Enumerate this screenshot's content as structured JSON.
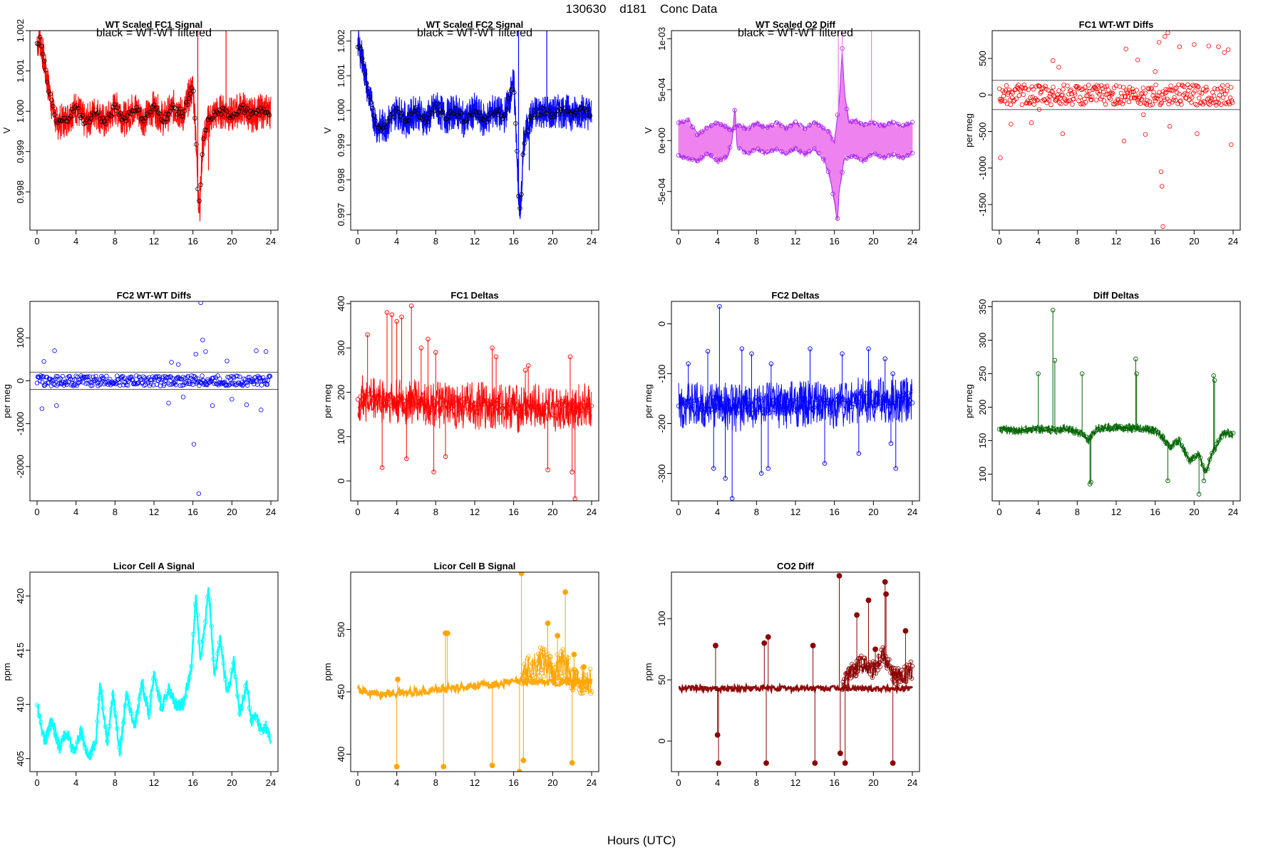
{
  "page": {
    "title": "130630    d181    Conc Data",
    "xlabel": "Hours (UTC)"
  },
  "chart_data": [
    {
      "id": "p1",
      "type": "line",
      "title": "WT Scaled FC1 Signal",
      "ylabel": "V",
      "note": "black = WT-WT filtered",
      "xlim": [
        0,
        24
      ],
      "ylim": [
        0.99705,
        1.002
      ],
      "yticks": [
        0.998,
        0.999,
        1.0,
        1.001,
        1.002
      ],
      "ytick_labels": [
        "0.998",
        "0.999",
        "1.000",
        "1.001",
        "1.002"
      ],
      "color": "#ff0000",
      "marker_color": "#000000",
      "series": [
        {
          "name": "signal",
          "x": [
            0,
            0.3,
            0.6,
            1,
            1.5,
            2,
            3,
            4,
            5,
            6,
            7,
            8,
            9,
            10,
            11,
            12,
            13,
            14,
            15,
            15.5,
            16,
            16.3,
            16.5,
            16.7,
            17,
            17.5,
            18,
            19,
            20,
            21,
            22,
            23,
            24
          ],
          "y": [
            1.0017,
            1.0018,
            1.0014,
            1.0008,
            1.0002,
            0.9997,
            0.9998,
            1.0001,
            0.9997,
            1.0,
            0.9997,
            1.0001,
            0.9998,
            1.0001,
            0.9998,
            1.0001,
            0.9998,
            1.0001,
            0.9999,
            1.0003,
            1.0006,
            0.9995,
            0.998,
            0.9976,
            0.9992,
            0.9997,
            0.9999,
            1.0,
            0.9999,
            1.0001,
            0.9999,
            1.0,
            1.0
          ]
        }
      ]
    },
    {
      "id": "p2",
      "type": "line",
      "title": "WT Scaled FC2 Signal",
      "ylabel": "V",
      "note": "black = WT-WT filtered",
      "xlim": [
        0,
        24
      ],
      "ylim": [
        0.99655,
        1.0023
      ],
      "yticks": [
        0.997,
        0.998,
        0.999,
        1.0,
        1.001,
        1.002
      ],
      "ytick_labels": [
        "0.997",
        "0.998",
        "0.999",
        "1.000",
        "1.001",
        "1.002"
      ],
      "color": "#0000ff",
      "marker_color": "#000000",
      "series": [
        {
          "name": "signal",
          "x": [
            0,
            0.3,
            0.6,
            1,
            1.5,
            2,
            3,
            4,
            5,
            6,
            7,
            8,
            9,
            10,
            11,
            12,
            13,
            14,
            15,
            15.5,
            16,
            16.3,
            16.5,
            16.7,
            17,
            17.5,
            18,
            19,
            20,
            21,
            22,
            23,
            24
          ],
          "y": [
            1.0019,
            1.0017,
            1.0013,
            1.0006,
            1.0,
            0.9995,
            0.9996,
            1.0,
            0.9997,
            1.0,
            0.9997,
            1.0001,
            0.9998,
            1.0,
            0.9997,
            1.0,
            0.9997,
            1.0,
            0.9998,
            1.0003,
            1.0008,
            0.9992,
            0.9975,
            0.997,
            0.999,
            0.9996,
            0.9999,
            1.0,
            0.9999,
            1.0,
            0.9999,
            1.0,
            0.9999
          ]
        }
      ]
    },
    {
      "id": "p3",
      "type": "line",
      "title": "WT Scaled O2 Diff",
      "ylabel": "V",
      "note": "black = WT-WT filtered",
      "xlim": [
        0,
        24
      ],
      "ylim": [
        -0.00088,
        0.00108
      ],
      "yticks": [
        -0.0005,
        0,
        0.0005,
        0.001
      ],
      "ytick_labels": [
        "-5e-04",
        "0e+00",
        "5e-04",
        "1e-03"
      ],
      "color": "#ee82ee",
      "marker_color": "#a020f0",
      "series": [
        {
          "name": "upper",
          "x": [
            0,
            1,
            2,
            3,
            4,
            5,
            5.5,
            6,
            7,
            8,
            9,
            10,
            11,
            12,
            13,
            14,
            15,
            15.5,
            16,
            16.5,
            16.8,
            17,
            17.5,
            18,
            19,
            20,
            21,
            22,
            23,
            24
          ],
          "y": [
            0.00017,
            0.0002,
            5e-05,
            0.00013,
            0.00018,
            0.00012,
            0.0001,
            0.00016,
            0.00011,
            0.00017,
            0.00012,
            0.00018,
            0.00012,
            0.00018,
            0.00012,
            0.00018,
            0.00012,
            8e-05,
            -2e-05,
            0.0004,
            0.0009,
            0.0005,
            0.00017,
            0.0002,
            0.00015,
            0.00018,
            0.00014,
            0.00018,
            0.00014,
            0.00018
          ]
        },
        {
          "name": "lower",
          "x": [
            0,
            1,
            2,
            3,
            4,
            5,
            5.5,
            5.8,
            6,
            7,
            8,
            9,
            10,
            11,
            12,
            13,
            14,
            15,
            15.5,
            16,
            16.3,
            16.5,
            17,
            18,
            19,
            20,
            21,
            22,
            23,
            24
          ],
          "y": [
            -0.00015,
            -0.00017,
            -0.0002,
            -0.00012,
            -0.0002,
            -0.00015,
            0.0,
            0.00035,
            -5e-05,
            -0.00013,
            -8e-05,
            -0.00012,
            -8e-05,
            -0.00013,
            -8e-05,
            -0.00013,
            -8e-05,
            -0.0002,
            -0.00035,
            -0.0006,
            -0.0008,
            -0.0005,
            -0.00018,
            -0.00015,
            -0.0002,
            -0.00012,
            -0.00017,
            -0.00013,
            -0.00017,
            -0.00012
          ]
        }
      ]
    },
    {
      "id": "p4",
      "type": "scatter",
      "title": "FC1 WT-WT Diffs",
      "ylabel": "per meg",
      "xlim": [
        0,
        24
      ],
      "ylim": [
        -1850,
        880
      ],
      "yticks": [
        -1500,
        -1000,
        -500,
        0,
        500
      ],
      "ytick_labels": [
        "-1500",
        "-1000",
        "-500",
        "0",
        "500"
      ],
      "hlines": [
        200,
        -200
      ],
      "color": "#ff0000",
      "outliers": {
        "x": [
          0.1,
          1.2,
          3.3,
          4.1,
          5.5,
          6.1,
          6.5,
          13.0,
          14.2,
          15.0,
          16.0,
          16.4,
          16.6,
          16.7,
          16.8,
          17.0,
          17.3,
          17.5,
          18.5,
          20.0,
          21.5,
          22.5,
          23.1,
          23.8,
          20.3,
          23.5,
          12.8,
          14.8
        ],
        "y": [
          -860,
          -400,
          -380,
          -200,
          470,
          380,
          -530,
          630,
          480,
          -540,
          320,
          720,
          -1050,
          -1250,
          -1800,
          800,
          850,
          -430,
          660,
          690,
          670,
          660,
          580,
          -680,
          -530,
          620,
          -630,
          -270
        ]
      }
    },
    {
      "id": "p5",
      "type": "scatter",
      "title": "FC2 WT-WT Diffs",
      "ylabel": "per meg",
      "xlim": [
        0,
        24
      ],
      "ylim": [
        -2800,
        1850
      ],
      "yticks": [
        -2000,
        -1000,
        0,
        1000
      ],
      "ytick_labels": [
        "-2000",
        "-1000",
        "0",
        "1000"
      ],
      "hlines": [
        200,
        -200
      ],
      "color": "#0000ff",
      "outliers": {
        "x": [
          0.5,
          0.7,
          1.8,
          2.0,
          13.5,
          13.8,
          15.0,
          16.1,
          16.3,
          16.6,
          16.8,
          17.0,
          17.3,
          18.0,
          19.5,
          20.0,
          22.5,
          23.0,
          23.5,
          21.5,
          14.5
        ],
        "y": [
          -650,
          450,
          700,
          -580,
          -520,
          430,
          -380,
          -1480,
          620,
          -2630,
          1820,
          950,
          680,
          -580,
          460,
          -430,
          700,
          -680,
          680,
          -560,
          380
        ]
      }
    },
    {
      "id": "p6",
      "type": "line",
      "title": "FC1 Deltas",
      "ylabel": "per meg",
      "xlim": [
        0,
        24
      ],
      "ylim": [
        -45,
        405
      ],
      "yticks": [
        0,
        100,
        200,
        300,
        400
      ],
      "ytick_labels": [
        "0",
        "100",
        "200",
        "300",
        "400"
      ],
      "color": "#ff0000",
      "series": [
        {
          "name": "delta",
          "x": [
            0,
            2,
            4,
            6,
            8,
            10,
            12,
            14,
            16,
            16.5,
            17,
            18,
            20,
            22,
            24
          ],
          "y": [
            185,
            185,
            175,
            180,
            170,
            168,
            170,
            168,
            170,
            160,
            165,
            168,
            160,
            170,
            165
          ]
        }
      ],
      "spikes": {
        "x": [
          1.0,
          2.5,
          3.5,
          4.0,
          4.5,
          5.5,
          6.5,
          7.2,
          8.0,
          9.0,
          13.8,
          14.2,
          17.2,
          19.5,
          21.8,
          22.0,
          22.3,
          3.0,
          5.0,
          7.8,
          17.5
        ],
        "y": [
          330,
          30,
          375,
          360,
          370,
          395,
          300,
          320,
          290,
          55,
          300,
          280,
          250,
          25,
          280,
          20,
          -40,
          380,
          50,
          20,
          260
        ]
      }
    },
    {
      "id": "p7",
      "type": "line",
      "title": "FC2 Deltas",
      "ylabel": "per meg",
      "xlim": [
        0,
        24
      ],
      "ylim": [
        -355,
        45
      ],
      "yticks": [
        -300,
        -200,
        -100,
        0
      ],
      "ytick_labels": [
        "-300",
        "-200",
        "-100",
        "0"
      ],
      "color": "#0000ff",
      "series": [
        {
          "name": "delta",
          "x": [
            0,
            2,
            4,
            6,
            8,
            10,
            12,
            14,
            16,
            16.5,
            17,
            18,
            20,
            22,
            24
          ],
          "y": [
            -160,
            -165,
            -160,
            -170,
            -160,
            -165,
            -160,
            -162,
            -165,
            -150,
            -160,
            -155,
            -150,
            -160,
            -150
          ]
        }
      ],
      "spikes": {
        "x": [
          1.0,
          3.0,
          3.6,
          4.2,
          4.8,
          5.5,
          6.5,
          7.5,
          8.5,
          9.2,
          9.5,
          13.5,
          15.0,
          16.8,
          18.5,
          19.5,
          21.2,
          21.8,
          22.3,
          22.0
        ],
        "y": [
          -80,
          -55,
          -290,
          35,
          -310,
          -350,
          -50,
          -60,
          -300,
          -290,
          -80,
          -50,
          -280,
          -60,
          -260,
          -50,
          -70,
          -240,
          -290,
          -100
        ]
      }
    },
    {
      "id": "p8",
      "type": "line",
      "title": "Diff Deltas",
      "ylabel": "per meg",
      "xlim": [
        0,
        24
      ],
      "ylim": [
        60,
        358
      ],
      "yticks": [
        100,
        150,
        200,
        250,
        300,
        350
      ],
      "ytick_labels": [
        "100",
        "150",
        "200",
        "250",
        "300",
        "350"
      ],
      "color": "#006400",
      "series": [
        {
          "name": "delta",
          "x": [
            0,
            2,
            4,
            5,
            7,
            8.5,
            9.2,
            10,
            12,
            14,
            16,
            16.5,
            17.5,
            18.5,
            19.5,
            20.5,
            21.2,
            21.8,
            23,
            24
          ],
          "y": [
            168,
            165,
            168,
            165,
            168,
            160,
            150,
            168,
            170,
            168,
            165,
            160,
            140,
            150,
            120,
            130,
            100,
            130,
            162,
            160
          ]
        }
      ],
      "spikes": {
        "x": [
          4.0,
          5.5,
          5.7,
          8.5,
          9.3,
          9.4,
          14.0,
          14.1,
          20.5,
          21.0,
          22.0,
          22.1,
          17.3
        ],
        "y": [
          250,
          345,
          270,
          250,
          85,
          88,
          272,
          250,
          70,
          90,
          247,
          240,
          90
        ]
      }
    },
    {
      "id": "p9",
      "type": "line",
      "title": "Licor Cell A Signal",
      "ylabel": "ppm",
      "xlim": [
        0,
        24
      ],
      "ylim": [
        403.8,
        422.2
      ],
      "yticks": [
        405,
        410,
        415,
        420
      ],
      "ytick_labels": [
        "405",
        "410",
        "415",
        "420"
      ],
      "color": "#00ffff",
      "series": [
        {
          "name": "ppm",
          "x": [
            0,
            0.8,
            1.5,
            2.3,
            3.0,
            3.8,
            4.5,
            5.3,
            6.0,
            6.5,
            7.2,
            7.8,
            8.5,
            9.2,
            10,
            10.8,
            11.5,
            12,
            12.8,
            13.5,
            14.2,
            15,
            15.8,
            16.3,
            16.8,
            17.2,
            17.6,
            18.2,
            18.8,
            19.5,
            20.2,
            20.8,
            21.5,
            22,
            22.5,
            23,
            23.5,
            24
          ],
          "y": [
            410,
            406.5,
            408.5,
            406,
            407.5,
            405.5,
            407.5,
            405,
            406.5,
            412,
            406.5,
            411,
            405.5,
            411,
            408,
            412,
            409,
            413,
            409.5,
            411.5,
            410,
            410,
            413,
            420,
            414,
            417,
            421,
            413,
            416,
            411,
            414,
            409,
            412,
            408.5,
            409,
            407.5,
            408,
            406.5
          ]
        }
      ]
    },
    {
      "id": "p10",
      "type": "line",
      "title": "Licor Cell B Signal",
      "ylabel": "ppm",
      "xlim": [
        0,
        24
      ],
      "ylim": [
        386,
        546
      ],
      "yticks": [
        400,
        450,
        500
      ],
      "ytick_labels": [
        "400",
        "450",
        "500"
      ],
      "color": "#ffa500",
      "series": [
        {
          "name": "ppm",
          "x": [
            0,
            2,
            4,
            6,
            8,
            10,
            12,
            14,
            16,
            16.5,
            17,
            18,
            19,
            20,
            21,
            22,
            23,
            24
          ],
          "y": [
            452,
            448,
            449,
            450,
            452,
            453,
            455,
            456,
            458,
            458,
            460,
            465,
            470,
            460,
            470,
            458,
            455,
            455
          ]
        }
      ],
      "spikes": {
        "x": [
          4.0,
          4.1,
          8.8,
          9.0,
          9.2,
          13.8,
          16.6,
          16.8,
          17.0,
          19.5,
          20.5,
          21.3,
          21.5,
          22.0,
          22.2,
          23.2
        ],
        "y": [
          390,
          460,
          390,
          497,
          497,
          391,
          386,
          545,
          395,
          505,
          495,
          530,
          460,
          393,
          480,
          470
        ]
      }
    },
    {
      "id": "p11",
      "type": "line",
      "title": "CO2 Diff",
      "ylabel": "ppm",
      "xlim": [
        0,
        24
      ],
      "ylim": [
        -25,
        138
      ],
      "yticks": [
        0,
        50,
        100
      ],
      "ytick_labels": [
        "0",
        "50",
        "100"
      ],
      "color": "#8b0000",
      "series": [
        {
          "name": "ppm",
          "x": [
            0,
            2,
            4,
            6,
            8,
            10,
            12,
            14,
            16,
            16.5,
            17,
            18,
            19,
            20,
            21,
            22,
            23,
            24
          ],
          "y": [
            43,
            43,
            43,
            43,
            43,
            43,
            43,
            43,
            43,
            43,
            45,
            55,
            60,
            55,
            70,
            50,
            48,
            55
          ]
        }
      ],
      "spikes": {
        "x": [
          3.8,
          4.0,
          4.1,
          8.8,
          9.0,
          9.2,
          13.8,
          14.0,
          16.5,
          16.6,
          17.1,
          18.3,
          19.5,
          20.2,
          21.2,
          21.3,
          22.0,
          22.1,
          23.3
        ],
        "y": [
          78,
          5,
          -18,
          80,
          -18,
          85,
          78,
          -18,
          135,
          -10,
          -18,
          103,
          115,
          75,
          130,
          120,
          -18,
          55,
          90
        ]
      }
    }
  ]
}
